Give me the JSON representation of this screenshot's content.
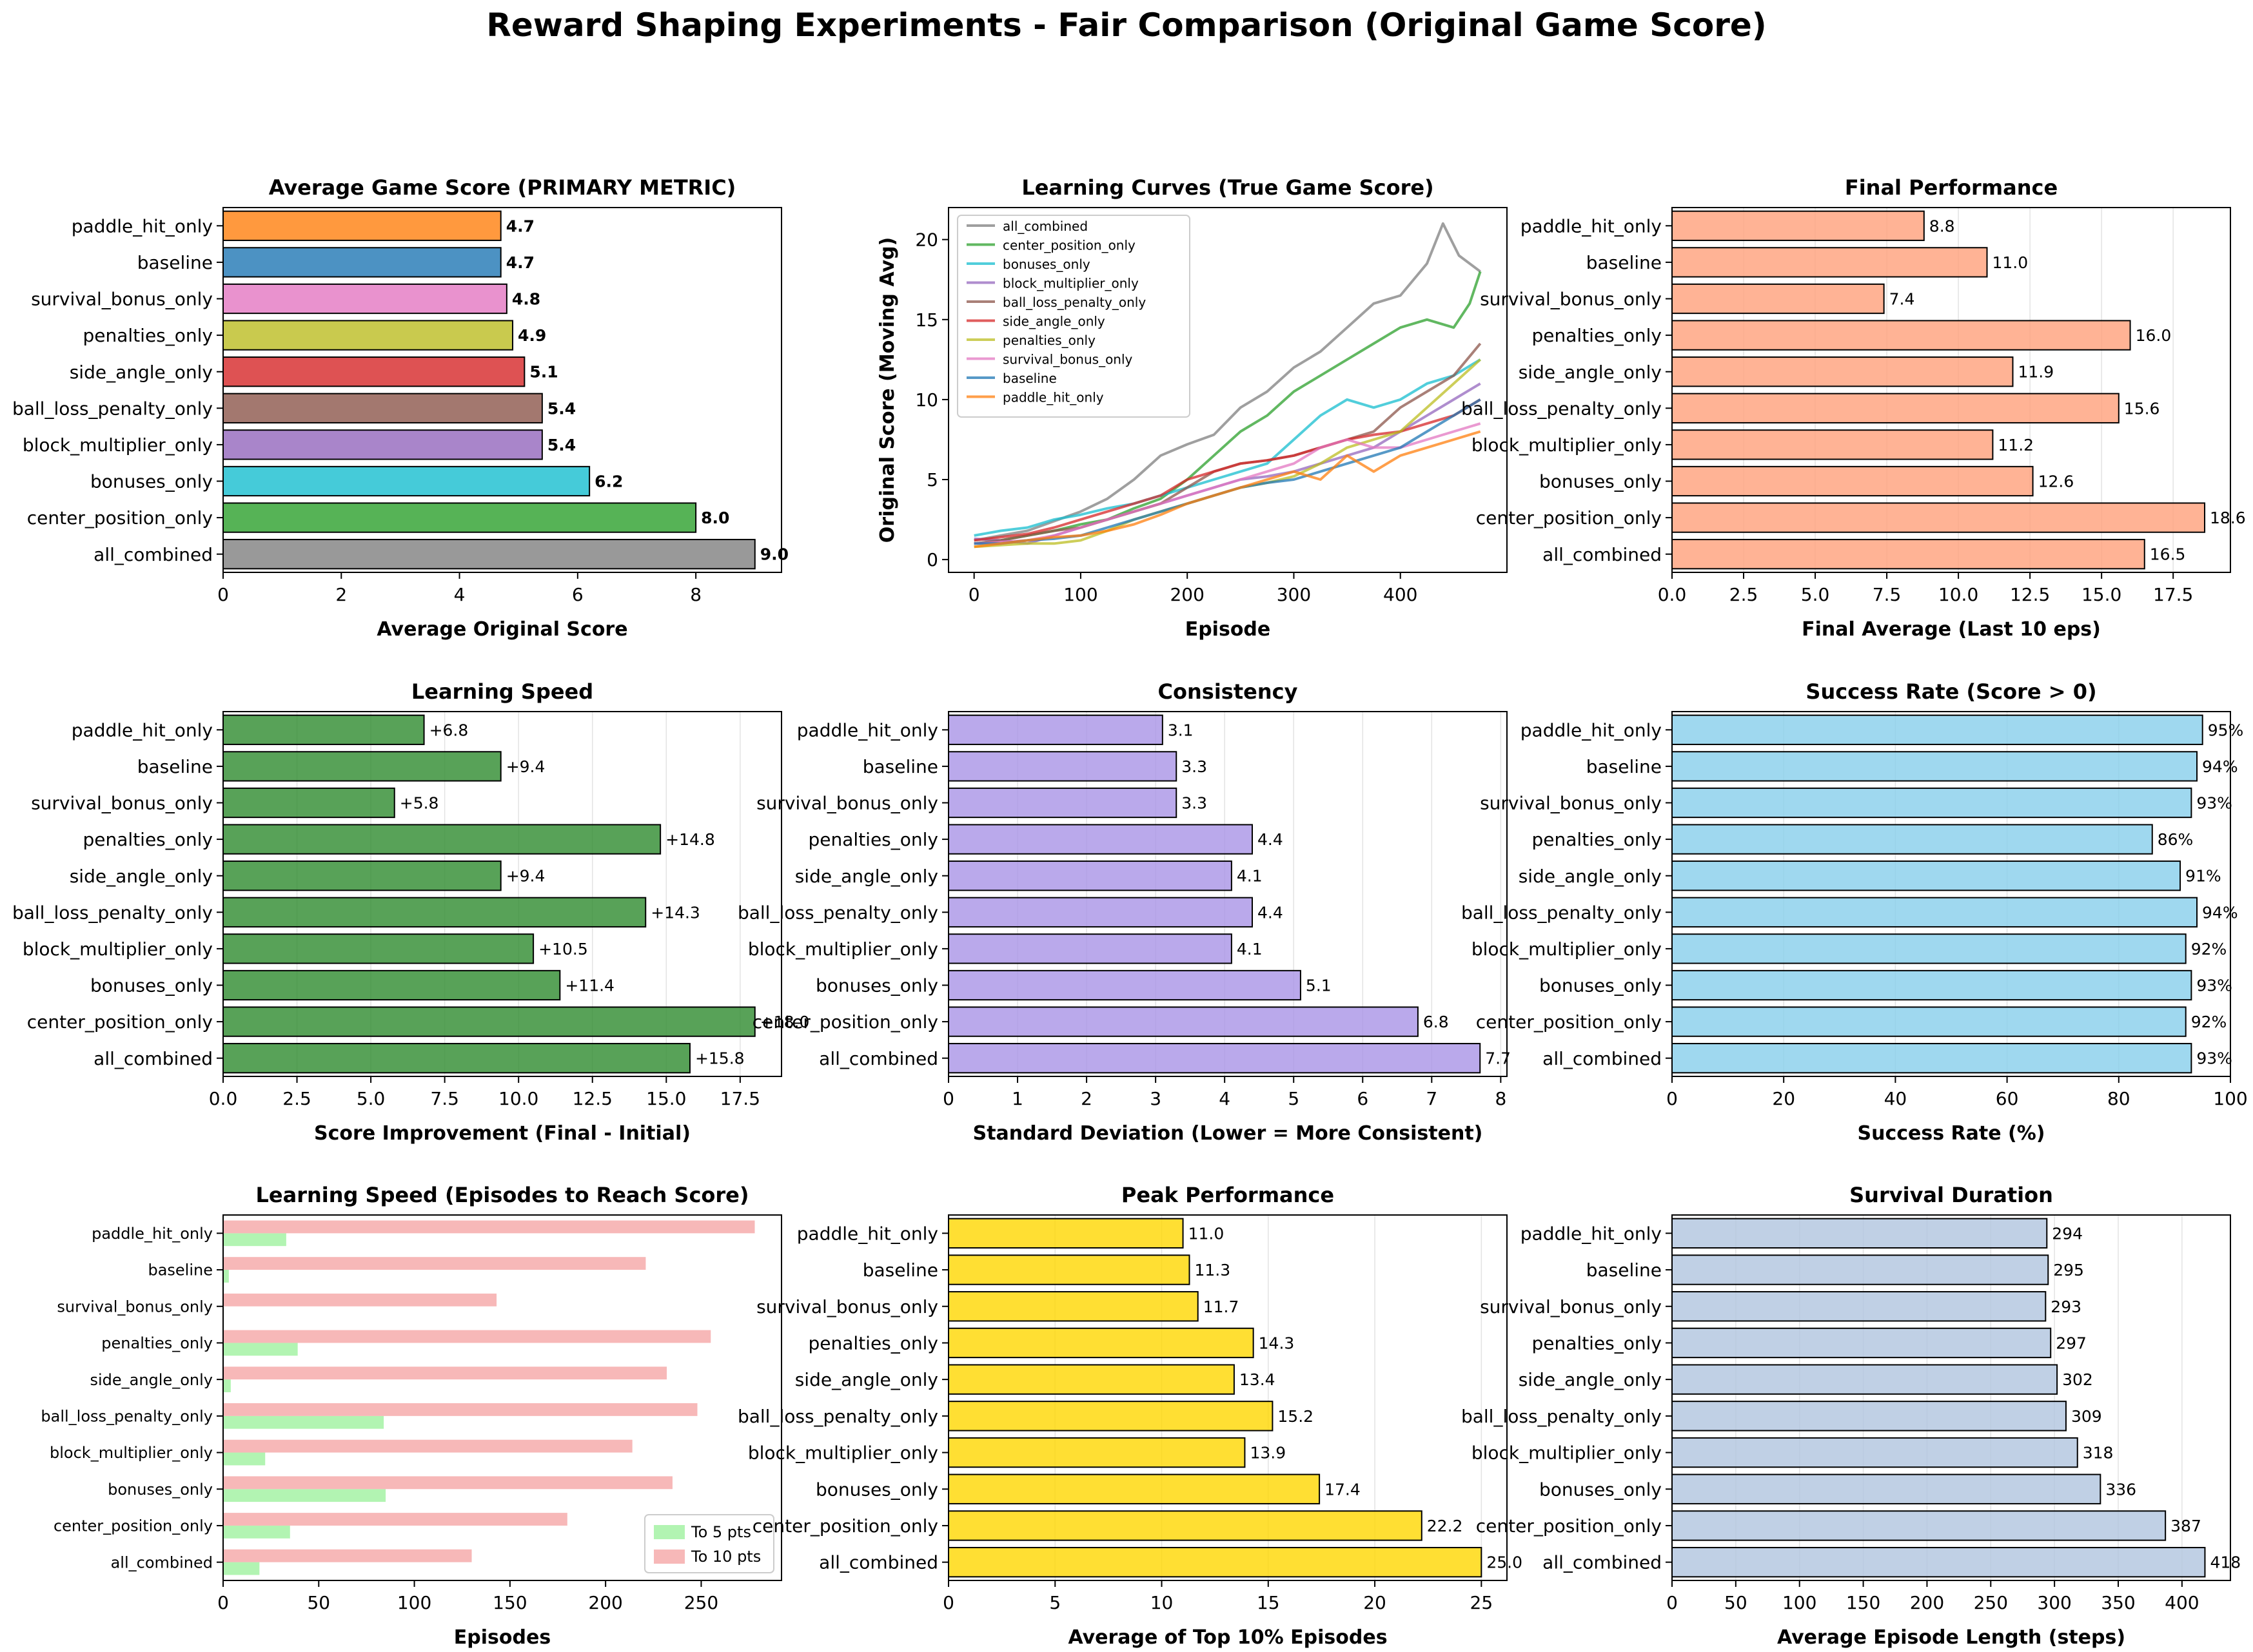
{
  "suptitle": "Reward Shaping Experiments - Fair Comparison (Original Game Score)",
  "chart_data": [
    {
      "type": "bar",
      "title": "Average Game Score (PRIMARY METRIC)",
      "xlabel": "Average Original Score",
      "ylabel": "",
      "categories": [
        "paddle_hit_only",
        "baseline",
        "survival_bonus_only",
        "penalties_only",
        "side_angle_only",
        "ball_loss_penalty_only",
        "block_multiplier_only",
        "bonuses_only",
        "center_position_only",
        "all_combined"
      ],
      "values": [
        4.7,
        4.7,
        4.8,
        4.9,
        5.1,
        5.4,
        5.4,
        6.2,
        8.0,
        9.0
      ],
      "value_labels": [
        "4.7",
        "4.7",
        "4.8",
        "4.9",
        "5.1",
        "5.4",
        "5.4",
        "6.2",
        "8.0",
        "9.0"
      ],
      "xlim": [
        0,
        9.45
      ],
      "xticks": [
        0,
        2,
        4,
        6,
        8
      ],
      "xtick_labels": [
        "0",
        "2",
        "4",
        "6",
        "8"
      ],
      "grid": false,
      "bold_labels": true,
      "colors": [
        "#ff7f0e",
        "#1f77b4",
        "#e377c2",
        "#bcbd22",
        "#d62728",
        "#8c564b",
        "#9467bd",
        "#17becf",
        "#2ca02c",
        "#7f7f7f"
      ]
    },
    {
      "type": "line",
      "title": "Learning Curves (True Game Score)",
      "xlabel": "Episode",
      "ylabel": "Original Score (Moving Avg)",
      "xlim": [
        -24,
        500
      ],
      "ylim": [
        -0.8,
        22
      ],
      "xticks": [
        0,
        100,
        200,
        300,
        400
      ],
      "xtick_labels": [
        "0",
        "100",
        "200",
        "300",
        "400"
      ],
      "yticks": [
        0,
        5,
        10,
        15,
        20
      ],
      "ytick_labels": [
        "0",
        "5",
        "10",
        "15",
        "20"
      ],
      "grid": false,
      "legend": "top-left",
      "series": [
        {
          "name": "all_combined",
          "color": "#7f7f7f",
          "x": [
            0,
            25,
            50,
            75,
            100,
            125,
            150,
            175,
            200,
            225,
            250,
            275,
            300,
            325,
            350,
            375,
            400,
            425,
            440,
            455,
            475
          ],
          "y": [
            1.2,
            1.5,
            1.8,
            2.4,
            3.0,
            3.8,
            5.0,
            6.5,
            7.2,
            7.8,
            9.5,
            10.5,
            12.0,
            13.0,
            14.5,
            16.0,
            16.5,
            18.5,
            21.0,
            19.0,
            18.0
          ]
        },
        {
          "name": "center_position_only",
          "color": "#2ca02c",
          "x": [
            0,
            25,
            50,
            75,
            100,
            125,
            150,
            175,
            200,
            225,
            250,
            275,
            300,
            325,
            350,
            375,
            400,
            425,
            450,
            465,
            475
          ],
          "y": [
            1.0,
            1.2,
            1.5,
            1.8,
            2.2,
            2.5,
            3.2,
            3.8,
            5.0,
            6.5,
            8.0,
            9.0,
            10.5,
            11.5,
            12.5,
            13.5,
            14.5,
            15.0,
            14.5,
            16.0,
            18.0
          ]
        },
        {
          "name": "bonuses_only",
          "color": "#17becf",
          "x": [
            0,
            25,
            50,
            75,
            100,
            125,
            150,
            175,
            200,
            225,
            250,
            275,
            300,
            325,
            350,
            375,
            400,
            425,
            450,
            475
          ],
          "y": [
            1.5,
            1.8,
            2.0,
            2.5,
            2.8,
            3.2,
            3.5,
            4.0,
            4.5,
            5.0,
            5.5,
            6.0,
            7.5,
            9.0,
            10.0,
            9.5,
            10.0,
            11.0,
            11.5,
            12.5
          ]
        },
        {
          "name": "block_multiplier_only",
          "color": "#9467bd",
          "x": [
            0,
            25,
            50,
            75,
            100,
            125,
            150,
            175,
            200,
            225,
            250,
            275,
            300,
            325,
            350,
            375,
            400,
            425,
            450,
            475
          ],
          "y": [
            1.3,
            1.2,
            1.0,
            1.5,
            2.0,
            2.5,
            3.0,
            3.5,
            4.0,
            4.5,
            5.0,
            5.2,
            5.5,
            6.0,
            6.5,
            7.0,
            8.0,
            9.0,
            10.0,
            11.0
          ]
        },
        {
          "name": "ball_loss_penalty_only",
          "color": "#8c564b",
          "x": [
            0,
            25,
            50,
            75,
            100,
            125,
            150,
            175,
            200,
            225,
            250,
            275,
            300,
            325,
            350,
            375,
            400,
            425,
            450,
            475
          ],
          "y": [
            1.0,
            1.2,
            1.5,
            1.8,
            2.0,
            2.5,
            3.0,
            3.5,
            4.5,
            5.5,
            6.0,
            6.2,
            6.5,
            7.0,
            7.5,
            8.0,
            9.5,
            10.5,
            11.5,
            13.5
          ]
        },
        {
          "name": "side_angle_only",
          "color": "#d62728",
          "x": [
            0,
            25,
            50,
            75,
            100,
            125,
            150,
            175,
            200,
            225,
            250,
            275,
            300,
            325,
            350,
            375,
            400,
            425,
            450,
            475
          ],
          "y": [
            1.2,
            1.4,
            1.6,
            2.0,
            2.5,
            3.0,
            3.5,
            4.0,
            5.0,
            5.5,
            6.0,
            6.2,
            6.5,
            7.0,
            7.5,
            7.8,
            8.0,
            8.5,
            9.0,
            10.0
          ]
        },
        {
          "name": "penalties_only",
          "color": "#bcbd22",
          "x": [
            0,
            25,
            50,
            75,
            100,
            125,
            150,
            175,
            200,
            225,
            250,
            275,
            300,
            325,
            350,
            375,
            400,
            425,
            450,
            475
          ],
          "y": [
            0.8,
            0.9,
            1.0,
            1.0,
            1.2,
            1.8,
            2.5,
            3.0,
            3.5,
            4.0,
            4.5,
            4.8,
            5.2,
            6.0,
            7.0,
            7.5,
            8.0,
            9.5,
            11.0,
            12.5
          ]
        },
        {
          "name": "survival_bonus_only",
          "color": "#e377c2",
          "x": [
            0,
            25,
            50,
            75,
            100,
            125,
            150,
            175,
            200,
            225,
            250,
            275,
            300,
            325,
            350,
            375,
            400,
            425,
            450,
            475
          ],
          "y": [
            1.0,
            1.1,
            1.2,
            1.5,
            2.0,
            2.5,
            3.0,
            3.5,
            4.0,
            4.5,
            5.0,
            5.5,
            6.0,
            7.0,
            7.5,
            7.0,
            7.0,
            7.5,
            8.0,
            8.5
          ]
        },
        {
          "name": "baseline",
          "color": "#1f77b4",
          "x": [
            0,
            25,
            50,
            75,
            100,
            125,
            150,
            175,
            200,
            225,
            250,
            275,
            300,
            325,
            350,
            375,
            400,
            425,
            450,
            475
          ],
          "y": [
            1.0,
            1.0,
            1.2,
            1.3,
            1.5,
            2.0,
            2.5,
            3.0,
            3.5,
            4.0,
            4.5,
            4.8,
            5.0,
            5.5,
            6.0,
            6.5,
            7.0,
            8.0,
            9.0,
            10.0
          ]
        },
        {
          "name": "paddle_hit_only",
          "color": "#ff7f0e",
          "x": [
            0,
            25,
            50,
            75,
            100,
            125,
            150,
            175,
            200,
            225,
            250,
            275,
            300,
            325,
            350,
            375,
            400,
            425,
            450,
            475
          ],
          "y": [
            0.8,
            1.0,
            1.2,
            1.4,
            1.5,
            1.8,
            2.2,
            2.8,
            3.5,
            4.0,
            4.5,
            5.0,
            5.5,
            5.0,
            6.5,
            5.5,
            6.5,
            7.0,
            7.5,
            8.0
          ]
        }
      ]
    },
    {
      "type": "bar",
      "title": "Final Performance",
      "xlabel": "Final Average (Last 10 eps)",
      "ylabel": "",
      "categories": [
        "paddle_hit_only",
        "baseline",
        "survival_bonus_only",
        "penalties_only",
        "side_angle_only",
        "ball_loss_penalty_only",
        "block_multiplier_only",
        "bonuses_only",
        "center_position_only",
        "all_combined"
      ],
      "values": [
        8.8,
        11.0,
        7.4,
        16.0,
        11.9,
        15.6,
        11.2,
        12.6,
        18.6,
        16.5
      ],
      "value_labels": [
        "8.8",
        "11.0",
        "7.4",
        "16.0",
        "11.9",
        "15.6",
        "11.2",
        "12.6",
        "18.6",
        "16.5"
      ],
      "xlim": [
        0,
        19.5
      ],
      "xticks": [
        0,
        2.5,
        5,
        7.5,
        10,
        12.5,
        15,
        17.5
      ],
      "xtick_labels": [
        "0.0",
        "2.5",
        "5.0",
        "7.5",
        "10.0",
        "12.5",
        "15.0",
        "17.5"
      ],
      "grid": true,
      "color": "#ffa07a"
    },
    {
      "type": "bar",
      "title": "Learning Speed",
      "xlabel": "Score Improvement (Final - Initial)",
      "ylabel": "",
      "categories": [
        "paddle_hit_only",
        "baseline",
        "survival_bonus_only",
        "penalties_only",
        "side_angle_only",
        "ball_loss_penalty_only",
        "block_multiplier_only",
        "bonuses_only",
        "center_position_only",
        "all_combined"
      ],
      "values": [
        6.8,
        9.4,
        5.8,
        14.8,
        9.4,
        14.3,
        10.5,
        11.4,
        18.0,
        15.8
      ],
      "value_labels": [
        "+6.8",
        "+9.4",
        "+5.8",
        "+14.8",
        "+9.4",
        "+14.3",
        "+10.5",
        "+11.4",
        "+18.0",
        "+15.8"
      ],
      "xlim": [
        0,
        18.9
      ],
      "xticks": [
        0,
        2.5,
        5,
        7.5,
        10,
        12.5,
        15,
        17.5
      ],
      "xtick_labels": [
        "0.0",
        "2.5",
        "5.0",
        "7.5",
        "10.0",
        "12.5",
        "15.0",
        "17.5"
      ],
      "grid": true,
      "color": "#2e8b2e"
    },
    {
      "type": "bar",
      "title": "Consistency",
      "xlabel": "Standard Deviation (Lower = More Consistent)",
      "ylabel": "",
      "categories": [
        "paddle_hit_only",
        "baseline",
        "survival_bonus_only",
        "penalties_only",
        "side_angle_only",
        "ball_loss_penalty_only",
        "block_multiplier_only",
        "bonuses_only",
        "center_position_only",
        "all_combined"
      ],
      "values": [
        3.1,
        3.3,
        3.3,
        4.4,
        4.1,
        4.4,
        4.1,
        5.1,
        6.8,
        7.7
      ],
      "value_labels": [
        "3.1",
        "3.3",
        "3.3",
        "4.4",
        "4.1",
        "4.4",
        "4.1",
        "5.1",
        "6.8",
        "7.7"
      ],
      "xlim": [
        0,
        8.09
      ],
      "xticks": [
        0,
        1,
        2,
        3,
        4,
        5,
        6,
        7,
        8
      ],
      "xtick_labels": [
        "0",
        "1",
        "2",
        "3",
        "4",
        "5",
        "6",
        "7",
        "8"
      ],
      "grid": true,
      "color": "#a993e6"
    },
    {
      "type": "bar",
      "title": "Success Rate (Score > 0)",
      "xlabel": "Success Rate (%)",
      "ylabel": "",
      "categories": [
        "paddle_hit_only",
        "baseline",
        "survival_bonus_only",
        "penalties_only",
        "side_angle_only",
        "ball_loss_penalty_only",
        "block_multiplier_only",
        "bonuses_only",
        "center_position_only",
        "all_combined"
      ],
      "values": [
        95,
        94,
        93,
        86,
        91,
        94,
        92,
        93,
        92,
        93
      ],
      "value_labels": [
        "95%",
        "94%",
        "93%",
        "86%",
        "91%",
        "94%",
        "92%",
        "93%",
        "92%",
        "93%"
      ],
      "xlim": [
        0,
        100
      ],
      "xticks": [
        0,
        20,
        40,
        60,
        80,
        100
      ],
      "xtick_labels": [
        "0",
        "20",
        "40",
        "60",
        "80",
        "100"
      ],
      "grid": true,
      "color": "#87ceeb"
    },
    {
      "type": "bar",
      "title": "Learning Speed (Episodes to Reach Score)",
      "xlabel": "Episodes",
      "ylabel": "",
      "categories": [
        "paddle_hit_only",
        "baseline",
        "survival_bonus_only",
        "penalties_only",
        "side_angle_only",
        "ball_loss_penalty_only",
        "block_multiplier_only",
        "bonuses_only",
        "center_position_only",
        "all_combined"
      ],
      "xlim": [
        0,
        292
      ],
      "xticks": [
        0,
        50,
        100,
        150,
        200,
        250
      ],
      "xtick_labels": [
        "0",
        "50",
        "100",
        "150",
        "200",
        "250"
      ],
      "grid": false,
      "legend": "bottom-right",
      "series": [
        {
          "name": "To 5 pts",
          "color": "#98f098",
          "values": [
            33,
            3,
            0,
            39,
            4,
            84,
            22,
            85,
            35,
            19
          ]
        },
        {
          "name": "To 10 pts",
          "color": "#f4a0a0",
          "values": [
            278,
            221,
            143,
            255,
            232,
            248,
            214,
            235,
            180,
            130
          ]
        }
      ]
    },
    {
      "type": "bar",
      "title": "Peak Performance",
      "xlabel": "Average of Top 10% Episodes",
      "ylabel": "",
      "categories": [
        "paddle_hit_only",
        "baseline",
        "survival_bonus_only",
        "penalties_only",
        "side_angle_only",
        "ball_loss_penalty_only",
        "block_multiplier_only",
        "bonuses_only",
        "center_position_only",
        "all_combined"
      ],
      "values": [
        11.0,
        11.3,
        11.7,
        14.3,
        13.4,
        15.2,
        13.9,
        17.4,
        22.2,
        25.0
      ],
      "value_labels": [
        "11.0",
        "11.3",
        "11.7",
        "14.3",
        "13.4",
        "15.2",
        "13.9",
        "17.4",
        "22.2",
        "25.0"
      ],
      "xlim": [
        0,
        26.2
      ],
      "xticks": [
        0,
        5,
        10,
        15,
        20,
        25
      ],
      "xtick_labels": [
        "0",
        "5",
        "10",
        "15",
        "20",
        "25"
      ],
      "grid": true,
      "color": "#ffd700"
    },
    {
      "type": "bar",
      "title": "Survival Duration",
      "xlabel": "Average Episode Length (steps)",
      "ylabel": "",
      "categories": [
        "paddle_hit_only",
        "baseline",
        "survival_bonus_only",
        "penalties_only",
        "side_angle_only",
        "ball_loss_penalty_only",
        "block_multiplier_only",
        "bonuses_only",
        "center_position_only",
        "all_combined"
      ],
      "values": [
        294,
        295,
        293,
        297,
        302,
        309,
        318,
        336,
        387,
        418
      ],
      "value_labels": [
        "294",
        "295",
        "293",
        "297",
        "302",
        "309",
        "318",
        "336",
        "387",
        "418"
      ],
      "xlim": [
        0,
        438
      ],
      "xticks": [
        0,
        50,
        100,
        150,
        200,
        250,
        300,
        350,
        400
      ],
      "xtick_labels": [
        "0",
        "50",
        "100",
        "150",
        "200",
        "250",
        "300",
        "350",
        "400"
      ],
      "grid": true,
      "color": "#b0c4de"
    }
  ]
}
